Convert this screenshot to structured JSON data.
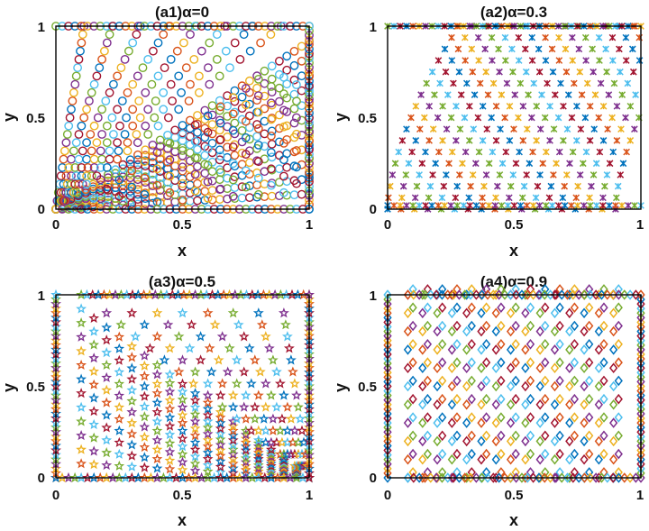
{
  "palette": [
    "#0072BD",
    "#D95319",
    "#EDB120",
    "#7E2F8E",
    "#77AC30",
    "#4DBEEE",
    "#A2142F"
  ],
  "chart_data": [
    {
      "type": "scatter",
      "title": "(a1)α=0",
      "xlabel": "x",
      "ylabel": "y",
      "xlim": [
        0,
        1
      ],
      "ylim": [
        0,
        1
      ],
      "xticks": [
        "0",
        "0.5",
        "1"
      ],
      "yticks": [
        "0",
        "0.5",
        "1"
      ],
      "marker": "circle",
      "pattern": "rays from origin"
    },
    {
      "type": "scatter",
      "title": "(a2)α=0.3",
      "xlabel": "x",
      "ylabel": "y",
      "xlim": [
        0,
        1
      ],
      "ylim": [
        0,
        1
      ],
      "xticks": [
        "0",
        "0.5",
        "1"
      ],
      "yticks": [
        "0",
        "0.5",
        "1"
      ],
      "marker": "cross",
      "pattern": "curved arcs"
    },
    {
      "type": "scatter",
      "title": "(a3)α=0.5",
      "xlabel": "x",
      "ylabel": "y",
      "xlim": [
        0,
        1
      ],
      "ylim": [
        0,
        1
      ],
      "xticks": [
        "0",
        "0.5",
        "1"
      ],
      "yticks": [
        "0",
        "0.5",
        "1"
      ],
      "marker": "pentagram",
      "pattern": "rays to (1,0)"
    },
    {
      "type": "scatter",
      "title": "(a4)α=0.9",
      "xlabel": "x",
      "ylabel": "y",
      "xlim": [
        0,
        1
      ],
      "ylim": [
        0,
        1
      ],
      "xticks": [
        "0",
        "0.5",
        "1"
      ],
      "yticks": [
        "0",
        "0.5",
        "1"
      ],
      "marker": "diamond",
      "pattern": "vertical columns"
    }
  ]
}
